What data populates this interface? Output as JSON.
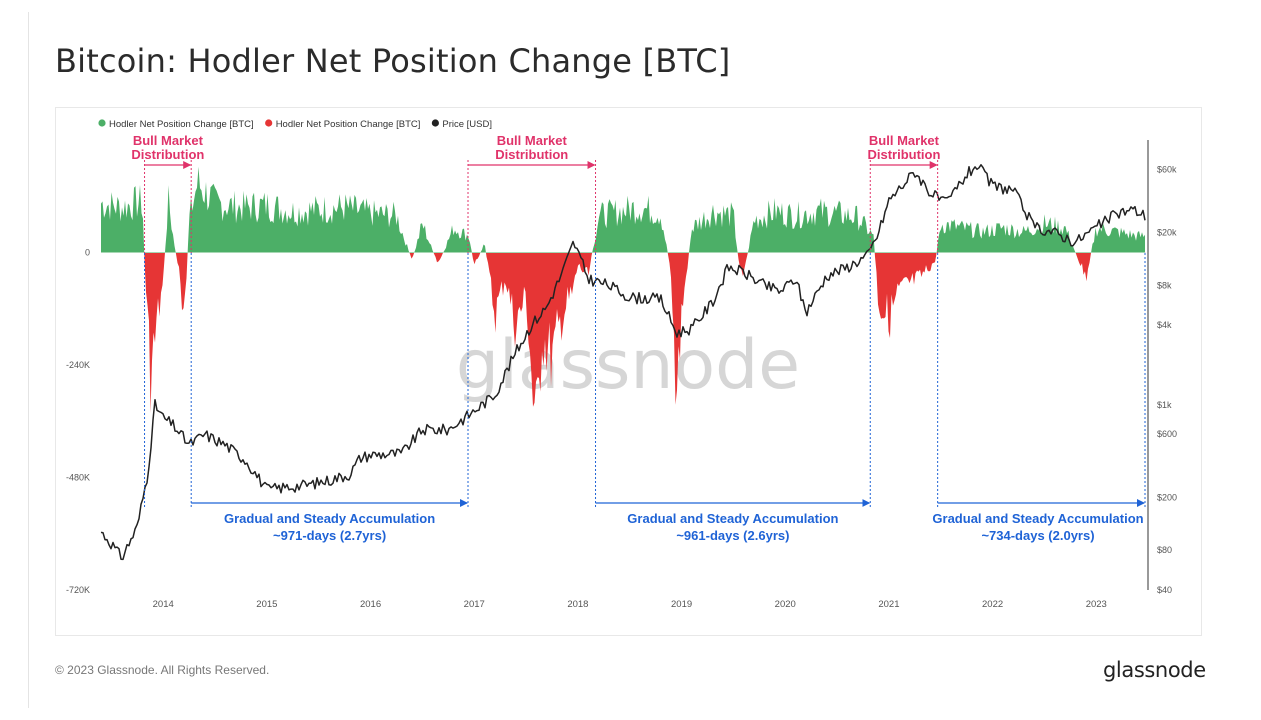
{
  "title": "Bitcoin: Hodler Net Position Change [BTC]",
  "footer": "© 2023 Glassnode. All Rights Reserved.",
  "brand": "glassnode",
  "watermark": "glassnode",
  "colors": {
    "positive": "#4caf67",
    "negative": "#e63535",
    "price": "#222222",
    "distribution": "#e0336a",
    "accumulation": "#1f63d6"
  },
  "chart_data": {
    "type": "area",
    "title": "Bitcoin: Hodler Net Position Change [BTC]",
    "legend_position": "top-left",
    "legend": [
      {
        "label": "Hodler Net Position Change [BTC]",
        "color": "#4caf67"
      },
      {
        "label": "Hodler Net Position Change [BTC]",
        "color": "#e63535"
      },
      {
        "label": "Price [USD]",
        "color": "#222222"
      }
    ],
    "x_ticks": [
      "2014",
      "2015",
      "2016",
      "2017",
      "2018",
      "2019",
      "2020",
      "2021",
      "2022",
      "2023"
    ],
    "x_range": [
      2013.4,
      2023.47
    ],
    "y_left": {
      "ticks": [
        "0",
        "-240K",
        "-480K",
        "-720K"
      ],
      "values": [
        0,
        -240000,
        -480000,
        -720000
      ],
      "range": [
        -720000,
        240000
      ]
    },
    "y_right": {
      "scale": "log",
      "ticks": [
        "$60k",
        "$20k",
        "$8k",
        "$4k",
        "$1k",
        "$600",
        "$200",
        "$80",
        "$40"
      ],
      "values": [
        60000,
        20000,
        8000,
        4000,
        1000,
        600,
        200,
        80,
        40
      ],
      "range": [
        40,
        100000
      ]
    },
    "grid": false,
    "net_position_series": [
      [
        2013.4,
        120000
      ],
      [
        2013.6,
        110000
      ],
      [
        2013.8,
        125000
      ],
      [
        2013.82,
        -20000
      ],
      [
        2013.88,
        -300000
      ],
      [
        2013.95,
        -150000
      ],
      [
        2014.0,
        -80000
      ],
      [
        2014.05,
        130000
      ],
      [
        2014.1,
        30000
      ],
      [
        2014.15,
        -40000
      ],
      [
        2014.2,
        -210000
      ],
      [
        2014.25,
        80000
      ],
      [
        2014.33,
        170000
      ],
      [
        2014.5,
        120000
      ],
      [
        2014.75,
        110000
      ],
      [
        2015.0,
        115000
      ],
      [
        2015.25,
        100000
      ],
      [
        2015.5,
        105000
      ],
      [
        2015.75,
        110000
      ],
      [
        2016.0,
        95000
      ],
      [
        2016.25,
        90000
      ],
      [
        2016.4,
        -20000
      ],
      [
        2016.5,
        70000
      ],
      [
        2016.65,
        -30000
      ],
      [
        2016.8,
        60000
      ],
      [
        2016.95,
        40000
      ],
      [
        2017.0,
        -30000
      ],
      [
        2017.1,
        20000
      ],
      [
        2017.2,
        -150000
      ],
      [
        2017.3,
        -60000
      ],
      [
        2017.4,
        -180000
      ],
      [
        2017.5,
        -100000
      ],
      [
        2017.6,
        -470000
      ],
      [
        2017.65,
        -200000
      ],
      [
        2017.75,
        -260000
      ],
      [
        2017.85,
        -150000
      ],
      [
        2017.95,
        -100000
      ],
      [
        2018.0,
        -30000
      ],
      [
        2018.1,
        -60000
      ],
      [
        2018.2,
        90000
      ],
      [
        2018.4,
        100000
      ],
      [
        2018.6,
        110000
      ],
      [
        2018.8,
        95000
      ],
      [
        2018.9,
        -50000
      ],
      [
        2018.95,
        -370000
      ],
      [
        2019.0,
        -150000
      ],
      [
        2019.1,
        60000
      ],
      [
        2019.3,
        100000
      ],
      [
        2019.5,
        90000
      ],
      [
        2019.55,
        -20000
      ],
      [
        2019.6,
        -50000
      ],
      [
        2019.7,
        80000
      ],
      [
        2019.9,
        100000
      ],
      [
        2020.1,
        90000
      ],
      [
        2020.3,
        100000
      ],
      [
        2020.5,
        95000
      ],
      [
        2020.7,
        85000
      ],
      [
        2020.85,
        40000
      ],
      [
        2020.9,
        -120000
      ],
      [
        2021.0,
        -160000
      ],
      [
        2021.1,
        -90000
      ],
      [
        2021.3,
        -60000
      ],
      [
        2021.45,
        -20000
      ],
      [
        2021.5,
        70000
      ],
      [
        2021.7,
        60000
      ],
      [
        2021.9,
        50000
      ],
      [
        2022.1,
        60000
      ],
      [
        2022.3,
        50000
      ],
      [
        2022.5,
        70000
      ],
      [
        2022.7,
        60000
      ],
      [
        2022.9,
        -60000
      ],
      [
        2023.0,
        60000
      ],
      [
        2023.2,
        50000
      ],
      [
        2023.4,
        40000
      ]
    ],
    "price_series": [
      [
        2013.4,
        110
      ],
      [
        2013.5,
        90
      ],
      [
        2013.6,
        70
      ],
      [
        2013.75,
        120
      ],
      [
        2013.85,
        300
      ],
      [
        2013.92,
        1000
      ],
      [
        2014.0,
        800
      ],
      [
        2014.1,
        700
      ],
      [
        2014.25,
        500
      ],
      [
        2014.4,
        600
      ],
      [
        2014.6,
        500
      ],
      [
        2014.8,
        380
      ],
      [
        2015.0,
        230
      ],
      [
        2015.2,
        240
      ],
      [
        2015.4,
        250
      ],
      [
        2015.6,
        270
      ],
      [
        2015.8,
        300
      ],
      [
        2015.9,
        400
      ],
      [
        2016.0,
        420
      ],
      [
        2016.3,
        430
      ],
      [
        2016.5,
        650
      ],
      [
        2016.75,
        650
      ],
      [
        2017.0,
        900
      ],
      [
        2017.2,
        1200
      ],
      [
        2017.4,
        2500
      ],
      [
        2017.55,
        4000
      ],
      [
        2017.7,
        5500
      ],
      [
        2017.85,
        10000
      ],
      [
        2017.96,
        17000
      ],
      [
        2018.1,
        9000
      ],
      [
        2018.3,
        8000
      ],
      [
        2018.5,
        6500
      ],
      [
        2018.8,
        6300
      ],
      [
        2018.95,
        3500
      ],
      [
        2019.1,
        3800
      ],
      [
        2019.3,
        6000
      ],
      [
        2019.45,
        11000
      ],
      [
        2019.6,
        10000
      ],
      [
        2019.8,
        8000
      ],
      [
        2019.95,
        7200
      ],
      [
        2020.1,
        9000
      ],
      [
        2020.2,
        5000
      ],
      [
        2020.4,
        9500
      ],
      [
        2020.6,
        11000
      ],
      [
        2020.8,
        13500
      ],
      [
        2020.9,
        20000
      ],
      [
        2021.0,
        35000
      ],
      [
        2021.25,
        58000
      ],
      [
        2021.4,
        40000
      ],
      [
        2021.55,
        33000
      ],
      [
        2021.75,
        55000
      ],
      [
        2021.85,
        65000
      ],
      [
        2022.0,
        45000
      ],
      [
        2022.2,
        42000
      ],
      [
        2022.4,
        22000
      ],
      [
        2022.6,
        20000
      ],
      [
        2022.8,
        17000
      ],
      [
        2023.0,
        22000
      ],
      [
        2023.2,
        28000
      ],
      [
        2023.35,
        30000
      ],
      [
        2023.47,
        27000
      ]
    ],
    "annotations": {
      "distribution": [
        {
          "line1": "Bull Market",
          "line2": "Distribution",
          "start": 2013.82,
          "end": 2014.27
        },
        {
          "line1": "Bull Market",
          "line2": "Distribution",
          "start": 2016.94,
          "end": 2018.17
        },
        {
          "line1": "Bull Market",
          "line2": "Distribution",
          "start": 2020.82,
          "end": 2021.47
        }
      ],
      "accumulation": [
        {
          "line1": "Gradual and Steady Accumulation",
          "line2": "~971-days (2.7yrs)",
          "start": 2014.27,
          "end": 2016.94
        },
        {
          "line1": "Gradual and Steady Accumulation",
          "line2": "~961-days (2.6yrs)",
          "start": 2018.17,
          "end": 2020.82
        },
        {
          "line1": "Gradual and Steady Accumulation",
          "line2": "~734-days (2.0yrs)",
          "start": 2021.47,
          "end": 2023.47
        }
      ]
    }
  }
}
